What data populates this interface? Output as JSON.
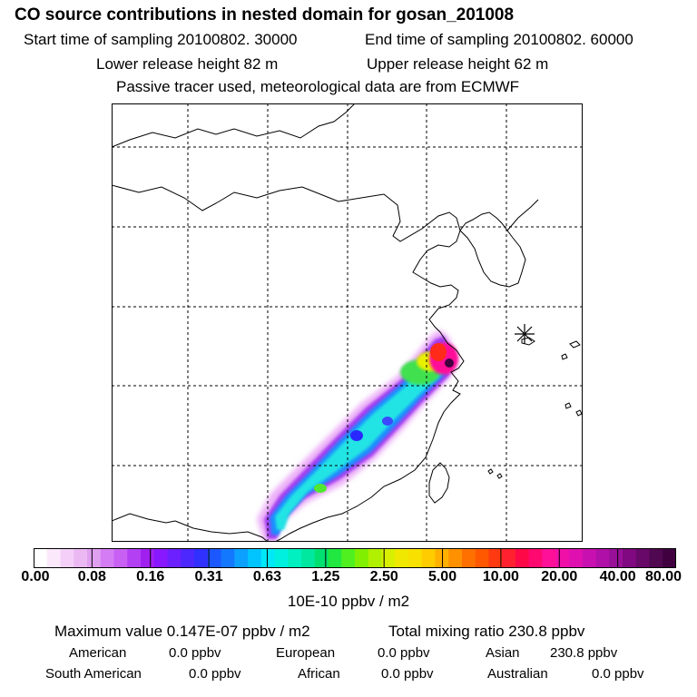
{
  "header": {
    "title": "CO  source contributions in nested domain for gosan_201008",
    "start_time": "Start time of sampling 20100802. 30000",
    "end_time": "End time of sampling 20100802. 60000",
    "lower_release": "Lower release height   82 m",
    "upper_release": "Upper release height   62 m",
    "tracer_note": "Passive tracer used, meteorological data are from ECMWF"
  },
  "map": {
    "grid_lines": "dashed",
    "receptor_marker": "asterisk-star",
    "plume_description_colors": {
      "low": "#e8a8f8",
      "mid": "#28e0e0",
      "high": "#ff1090",
      "peak": "#480048"
    }
  },
  "colorbar": {
    "tick_labels": [
      "0.00",
      "0.08",
      "0.16",
      "0.31",
      "0.63",
      "1.25",
      "2.50",
      "5.00",
      "10.00",
      "20.00",
      "40.00",
      "80.00"
    ],
    "colors": [
      "#ffffff",
      "#fbe8fb",
      "#f4d0f8",
      "#ecb8f4",
      "#e0a0f0",
      "#d47cf4",
      "#c860f4",
      "#b440f4",
      "#a020f0",
      "#8818ff",
      "#6c20ff",
      "#4c28ff",
      "#3030ff",
      "#1c58ff",
      "#1478ff",
      "#0ca0ff",
      "#00c4ff",
      "#00e8f8",
      "#00f0e0",
      "#00f0c0",
      "#00e8a0",
      "#00e070",
      "#20e840",
      "#50f020",
      "#80f000",
      "#b0f000",
      "#d8f000",
      "#f0e800",
      "#f8e000",
      "#ffcc00",
      "#ffb000",
      "#ff9000",
      "#ff7000",
      "#ff5800",
      "#ff3a10",
      "#ff2030",
      "#ff0848",
      "#ff0870",
      "#ff1098",
      "#f010a8",
      "#e010b0",
      "#c810b0",
      "#b010a8",
      "#981098",
      "#800880",
      "#680868",
      "#500850",
      "#400040"
    ],
    "units": "10E-10 ppbv / m2"
  },
  "summary": {
    "max_label": "Maximum value  0.147E-07 ppbv / m2",
    "total_label": "Total mixing ratio      230.8 ppbv",
    "sources": [
      {
        "name": "American",
        "value": "0.0 ppbv"
      },
      {
        "name": "European",
        "value": "0.0 ppbv"
      },
      {
        "name": "Asian",
        "value": "230.8 ppbv"
      },
      {
        "name": "South American",
        "value": "0.0 ppbv"
      },
      {
        "name": "African",
        "value": "0.0 ppbv"
      },
      {
        "name": "Australian",
        "value": "0.0 ppbv"
      }
    ]
  }
}
